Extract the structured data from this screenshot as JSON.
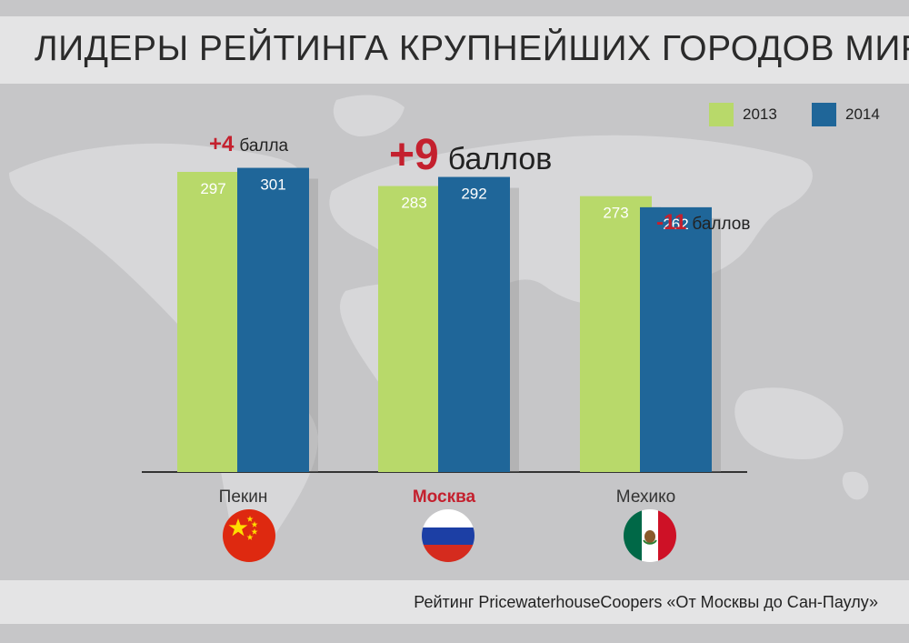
{
  "title": "ЛИДЕРЫ РЕЙТИНГА КРУПНЕЙШИХ ГОРОДОВ МИРА",
  "source": "Рейтинг  PricewaterhouseCoopers «От Москвы до Сан-Паулу»",
  "colors": {
    "y2013": "#b8d96a",
    "y2014": "#1f6699",
    "accent": "#c4202e",
    "text": "#2b2b2b",
    "axis": "#333333"
  },
  "chart_data": {
    "type": "bar",
    "categories": [
      "Пекин",
      "Москва",
      "Мехико"
    ],
    "series": [
      {
        "name": "2013",
        "values": [
          297,
          283,
          273
        ]
      },
      {
        "name": "2014",
        "values": [
          301,
          292,
          262
        ]
      }
    ],
    "changes": [
      {
        "delta": "+4",
        "unit": "балла"
      },
      {
        "delta": "+9",
        "unit": "баллов"
      },
      {
        "delta": "-11",
        "unit": "баллов"
      }
    ],
    "highlight_category": "Москва",
    "legend_position": "top-right",
    "grid": false,
    "xlabel": "",
    "ylabel": ""
  },
  "flags": [
    "china-flag-icon",
    "russia-flag-icon",
    "mexico-flag-icon"
  ]
}
